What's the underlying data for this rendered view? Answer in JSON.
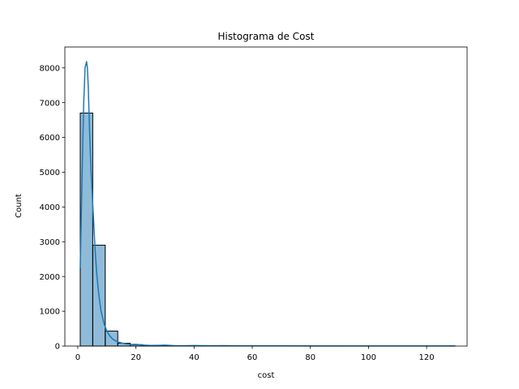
{
  "chart_data": {
    "type": "bar",
    "title": "Histograma de Cost",
    "xlabel": "cost",
    "ylabel": "Count",
    "xlim": [
      -4.45,
      133.92
    ],
    "ylim": [
      0,
      8600
    ],
    "xticks": [
      0,
      20,
      40,
      60,
      80,
      100,
      120
    ],
    "yticks": [
      0,
      1000,
      2000,
      3000,
      4000,
      5000,
      6000,
      7000,
      8000
    ],
    "bin_width": 4.3,
    "bins": [
      {
        "x0": 0.84,
        "x1": 5.14,
        "count": 6700
      },
      {
        "x0": 5.14,
        "x1": 9.44,
        "count": 2900
      },
      {
        "x0": 9.44,
        "x1": 13.74,
        "count": 430
      },
      {
        "x0": 13.74,
        "x1": 18.04,
        "count": 80
      },
      {
        "x0": 18.04,
        "x1": 22.34,
        "count": 40
      },
      {
        "x0": 22.34,
        "x1": 26.64,
        "count": 12
      },
      {
        "x0": 26.64,
        "x1": 30.94,
        "count": 15
      },
      {
        "x0": 30.94,
        "x1": 35.24,
        "count": 5
      },
      {
        "x0": 35.24,
        "x1": 39.54,
        "count": 4
      },
      {
        "x0": 39.54,
        "x1": 43.84,
        "count": 8
      },
      {
        "x0": 43.84,
        "x1": 48.14,
        "count": 3
      },
      {
        "x0": 48.14,
        "x1": 52.44,
        "count": 5
      },
      {
        "x0": 52.44,
        "x1": 56.74,
        "count": 2
      },
      {
        "x0": 56.74,
        "x1": 61.04,
        "count": 3
      },
      {
        "x0": 61.04,
        "x1": 65.34,
        "count": 1
      },
      {
        "x0": 65.34,
        "x1": 69.64,
        "count": 1
      },
      {
        "x0": 69.64,
        "x1": 73.94,
        "count": 3
      },
      {
        "x0": 73.94,
        "x1": 78.24,
        "count": 1
      },
      {
        "x0": 78.24,
        "x1": 82.54,
        "count": 2
      },
      {
        "x0": 82.54,
        "x1": 86.84,
        "count": 1
      },
      {
        "x0": 86.84,
        "x1": 91.14,
        "count": 1
      },
      {
        "x0": 91.14,
        "x1": 95.44,
        "count": 0
      },
      {
        "x0": 95.44,
        "x1": 99.74,
        "count": 1
      },
      {
        "x0": 99.74,
        "x1": 104.04,
        "count": 1
      },
      {
        "x0": 104.04,
        "x1": 108.34,
        "count": 0
      },
      {
        "x0": 108.34,
        "x1": 112.64,
        "count": 0
      },
      {
        "x0": 112.64,
        "x1": 116.94,
        "count": 0
      },
      {
        "x0": 116.94,
        "x1": 121.24,
        "count": 1
      },
      {
        "x0": 121.24,
        "x1": 125.54,
        "count": 0
      },
      {
        "x0": 125.54,
        "x1": 129.84,
        "count": 1
      }
    ],
    "kde": {
      "x": [
        0.84,
        1.5,
        2.0,
        2.5,
        3.0,
        3.3,
        3.6,
        4.0,
        4.5,
        5.0,
        5.5,
        6.0,
        6.5,
        7.0,
        7.5,
        8.0,
        9.0,
        10.0,
        11.0,
        12.0,
        13.0,
        14.0,
        16.0,
        18.0,
        20.0,
        22.0,
        25.0,
        28.0,
        30.0,
        33.0,
        36.0,
        40.0,
        45.0,
        50.0,
        55.0,
        60.0,
        70.0,
        80.0,
        90.0,
        100.0,
        110.0,
        120.0,
        129.84
      ],
      "y": [
        2250,
        5000,
        6900,
        8000,
        8180,
        8000,
        7450,
        6300,
        5100,
        4300,
        3500,
        2700,
        2100,
        1650,
        1300,
        1000,
        650,
        430,
        290,
        200,
        150,
        110,
        70,
        45,
        50,
        30,
        18,
        20,
        25,
        12,
        10,
        15,
        8,
        12,
        6,
        6,
        5,
        4,
        3,
        3,
        2,
        2,
        2
      ]
    },
    "colors": {
      "bar_fill": "#1f77b4",
      "bar_fill_opacity": 0.5,
      "bar_edge": "#000000",
      "kde_line": "#1f77b4"
    },
    "grid": false,
    "legend": "none"
  }
}
